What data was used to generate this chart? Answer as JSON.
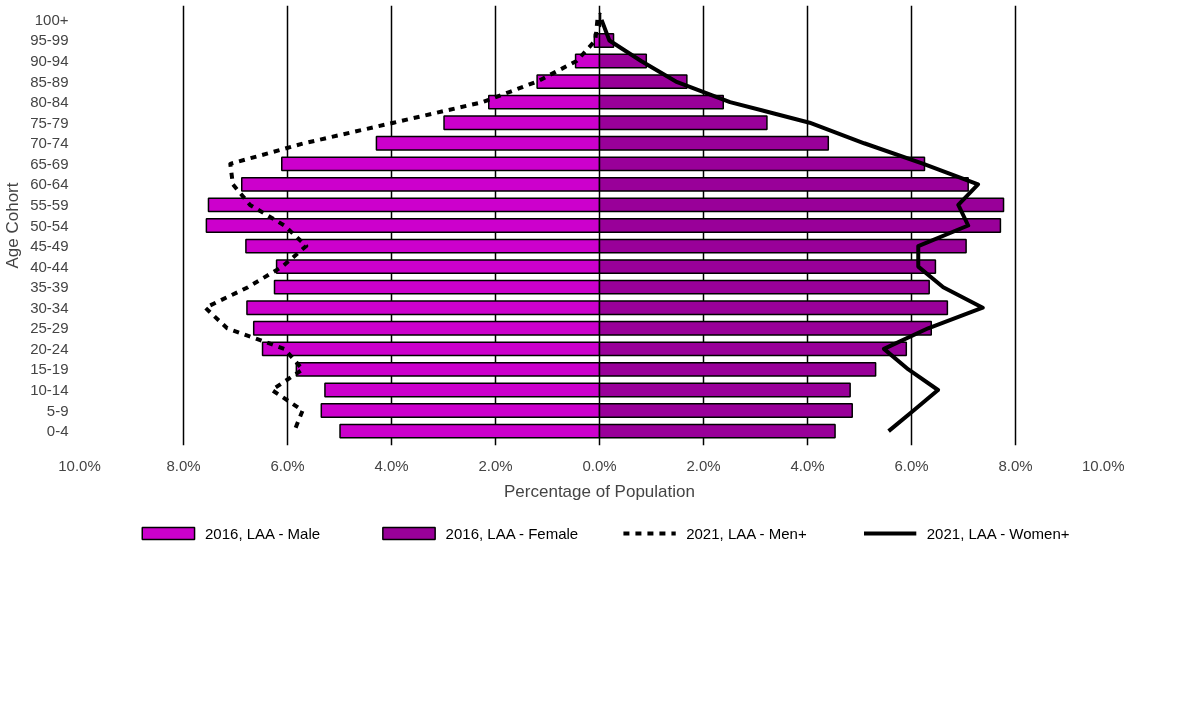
{
  "chart_data": {
    "type": "bar",
    "orientation": "horizontal",
    "xlabel": "Percentage of Population",
    "ylabel": "Age Cohort",
    "categories": [
      "100+",
      "95-99",
      "90-94",
      "85-89",
      "80-84",
      "75-79",
      "70-74",
      "65-69",
      "60-64",
      "55-59",
      "50-54",
      "45-49",
      "40-44",
      "35-39",
      "30-34",
      "25-29",
      "20-24",
      "15-19",
      "10-14",
      "5-9",
      "0-4"
    ],
    "series": [
      {
        "name": "2016, LAA - Male",
        "color": "#cc00cc",
        "values": [
          null,
          -0.1,
          -0.46,
          -1.2,
          -2.13,
          -2.99,
          -4.29,
          -6.11,
          -6.88,
          -7.52,
          -7.56,
          -6.8,
          -6.21,
          -6.25,
          -6.78,
          -6.65,
          -6.48,
          -5.83,
          -5.28,
          -5.35,
          -4.99
        ]
      },
      {
        "name": "2016, LAA - Female",
        "color": "#990099",
        "values": [
          0.02,
          0.27,
          0.9,
          1.68,
          2.38,
          3.22,
          4.4,
          6.25,
          7.09,
          7.77,
          7.71,
          7.05,
          6.46,
          6.34,
          6.69,
          6.38,
          5.9,
          5.31,
          4.82,
          4.86,
          4.53
        ]
      },
      {
        "name": "2021, LAA - Men+",
        "type": "line",
        "line_style": "dashed",
        "color": "#000000",
        "values": [
          -0.04,
          -0.08,
          -0.44,
          -1.2,
          -2.25,
          -3.96,
          -5.68,
          -7.1,
          -7.05,
          -6.72,
          -6.06,
          -5.64,
          -6.1,
          -6.76,
          -7.58,
          -7.16,
          -6.06,
          -5.71,
          -6.3,
          -5.71,
          -5.87
        ]
      },
      {
        "name": "2021, LAA - Women+",
        "type": "line",
        "line_style": "solid",
        "color": "#000000",
        "values": [
          0.04,
          0.19,
          0.8,
          1.47,
          2.51,
          4.04,
          5.09,
          6.23,
          7.28,
          6.9,
          7.09,
          6.13,
          6.13,
          6.61,
          7.37,
          6.32,
          5.47,
          5.94,
          6.51,
          6.04,
          5.56
        ]
      }
    ],
    "xlim": [
      -10,
      10
    ],
    "xticks": [
      {
        "value": -10,
        "label": "10.0%"
      },
      {
        "value": -8,
        "label": "8.0%"
      },
      {
        "value": -6,
        "label": "6.0%"
      },
      {
        "value": -4,
        "label": "4.0%"
      },
      {
        "value": -2,
        "label": "2.0%"
      },
      {
        "value": 0,
        "label": "0.0%"
      },
      {
        "value": 2,
        "label": "2.0%"
      },
      {
        "value": 4,
        "label": "4.0%"
      },
      {
        "value": 6,
        "label": "6.0%"
      },
      {
        "value": 8,
        "label": "8.0%"
      },
      {
        "value": 10,
        "label": "10.0%"
      }
    ],
    "grid": "x",
    "legend": "bottom",
    "stacked": true
  }
}
